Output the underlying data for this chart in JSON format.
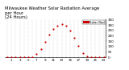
{
  "title": "Milwaukee Weather Solar Radiation Average\nper Hour\n(24 Hours)",
  "hours": [
    0,
    1,
    2,
    3,
    4,
    5,
    6,
    7,
    8,
    9,
    10,
    11,
    12,
    13,
    14,
    15,
    16,
    17,
    18,
    19,
    20,
    21,
    22,
    23
  ],
  "solar": [
    0,
    0,
    0,
    0,
    0,
    0,
    5,
    30,
    80,
    145,
    210,
    265,
    295,
    310,
    290,
    250,
    185,
    110,
    40,
    8,
    0,
    0,
    0,
    0
  ],
  "dot_color": "#cc0000",
  "bg_color": "#ffffff",
  "grid_color": "#bbbbbb",
  "ylim": [
    0,
    350
  ],
  "yticks": [
    0,
    50,
    100,
    150,
    200,
    250,
    300,
    350
  ],
  "xticks_show": [
    1,
    3,
    5,
    7,
    9,
    11,
    13,
    15,
    17,
    19,
    21,
    23
  ],
  "title_fontsize": 3.8,
  "tick_fontsize": 3.0,
  "legend_color": "#cc0000",
  "legend_label": "Solar Rad",
  "dot_size": 2.5
}
